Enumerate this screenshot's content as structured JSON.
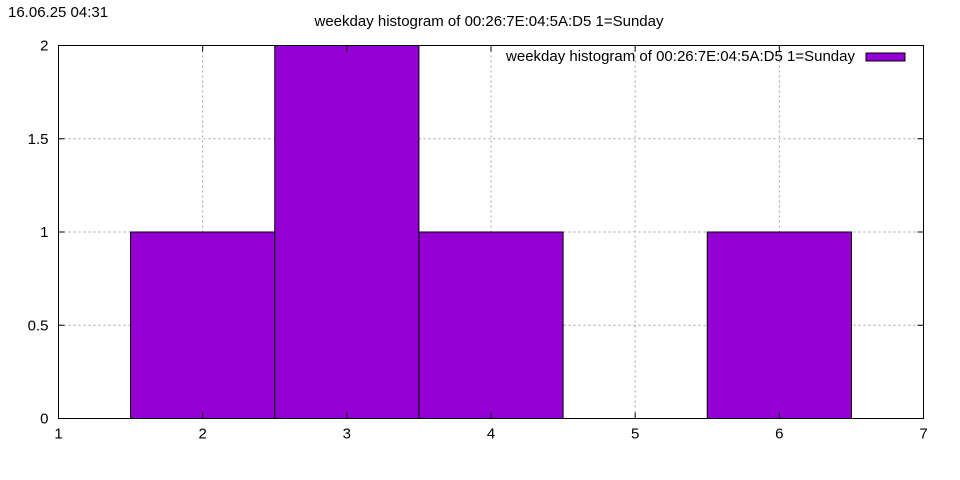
{
  "timestamp": "16.06.25 04:31",
  "chart_data": {
    "type": "bar",
    "title": "weekday histogram of 00:26:7E:04:5A:D5 1=Sunday",
    "xlabel": "",
    "ylabel": "",
    "xlim": [
      1,
      7
    ],
    "ylim": [
      0,
      2
    ],
    "x_ticks": [
      "1",
      "2",
      "3",
      "4",
      "5",
      "6",
      "7"
    ],
    "y_ticks": [
      "0",
      "0.5",
      "1",
      "1.5",
      "2"
    ],
    "grid": true,
    "legend_position": "top-right",
    "series": [
      {
        "name": "weekday histogram of 00:26:7E:04:5A:D5 1=Sunday",
        "color": "#9400d3",
        "x": [
          2,
          3,
          4,
          6
        ],
        "values": [
          1,
          2,
          1,
          1
        ]
      }
    ]
  }
}
